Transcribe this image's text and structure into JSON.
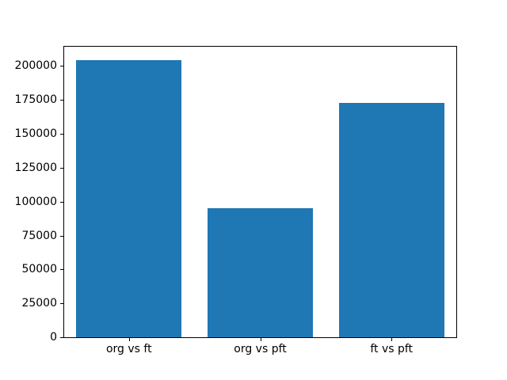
{
  "figure": {
    "background": "#ffffff",
    "text_color": "#000000",
    "spine_color": "#000000"
  },
  "chart_data": {
    "type": "bar",
    "title": "",
    "xlabel": "",
    "ylabel": "",
    "categories": [
      "org vs ft",
      "org vs pft",
      "ft vs pft"
    ],
    "values": [
      204500,
      95000,
      173000
    ],
    "bar_color": "#1f77b4",
    "bar_width_fraction": 0.8,
    "ylim": [
      0,
      214725
    ],
    "yticks": [
      0,
      25000,
      50000,
      75000,
      100000,
      125000,
      150000,
      175000,
      200000
    ],
    "ytick_labels": [
      "0",
      "25000",
      "50000",
      "75000",
      "100000",
      "125000",
      "150000",
      "175000",
      "200000"
    ],
    "grid": false,
    "legend": null
  }
}
